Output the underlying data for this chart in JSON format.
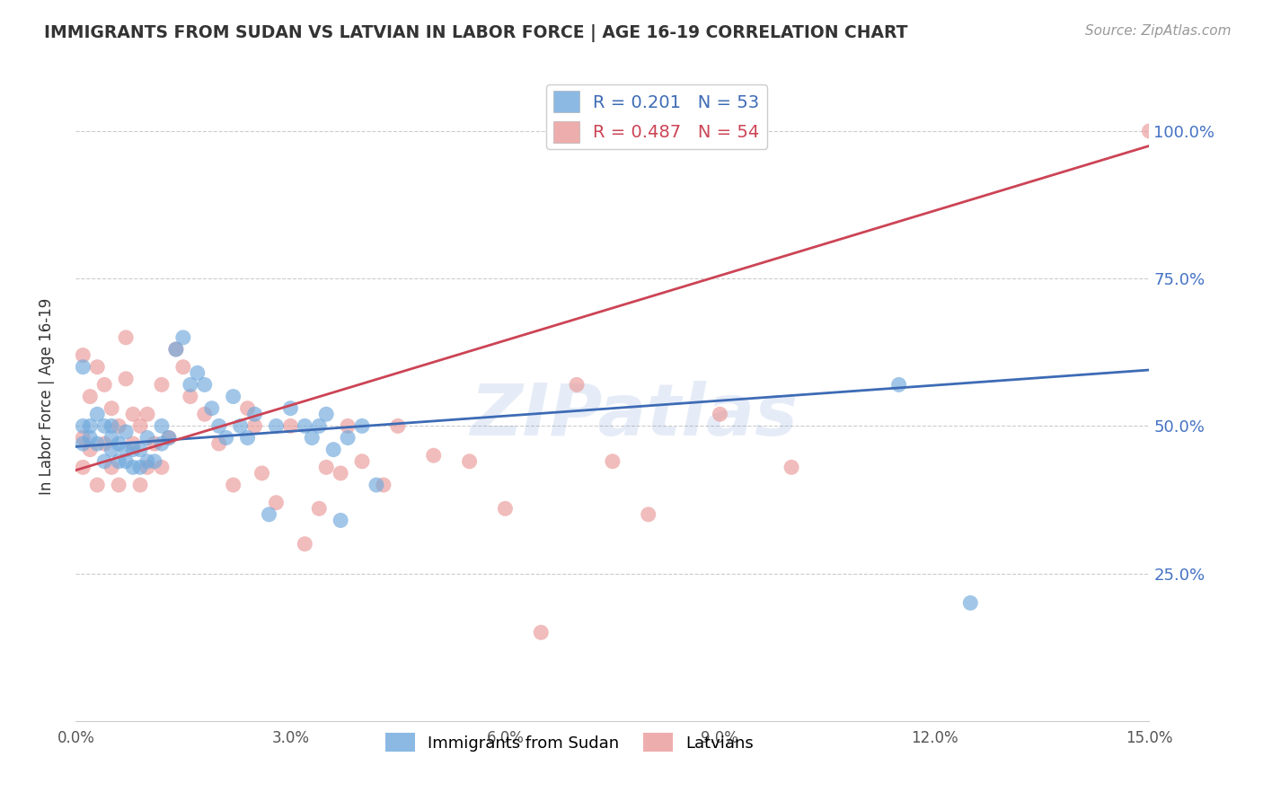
{
  "title": "IMMIGRANTS FROM SUDAN VS LATVIAN IN LABOR FORCE | AGE 16-19 CORRELATION CHART",
  "source": "Source: ZipAtlas.com",
  "ylabel": "In Labor Force | Age 16-19",
  "watermark": "ZIPatlas",
  "xmin": 0.0,
  "xmax": 0.15,
  "ymin": 0.0,
  "ymax": 1.1,
  "yticks": [
    0.25,
    0.5,
    0.75,
    1.0
  ],
  "ytick_labels": [
    "25.0%",
    "50.0%",
    "75.0%",
    "100.0%"
  ],
  "xticks": [
    0.0,
    0.03,
    0.06,
    0.09,
    0.12,
    0.15
  ],
  "xtick_labels": [
    "0.0%",
    "3.0%",
    "6.0%",
    "9.0%",
    "12.0%",
    "15.0%"
  ],
  "blue_r": 0.201,
  "blue_n": 53,
  "pink_r": 0.487,
  "pink_n": 54,
  "blue_color": "#6fa8dc",
  "pink_color": "#ea9999",
  "blue_line_color": "#3d6bb5",
  "pink_line_color": "#cc4455",
  "legend_label_blue": "Immigrants from Sudan",
  "legend_label_pink": "Latvians",
  "blue_line_y0": 0.465,
  "blue_line_y1": 0.595,
  "pink_line_y0": 0.425,
  "pink_line_y1": 0.975,
  "blue_scatter_x": [
    0.001,
    0.001,
    0.001,
    0.002,
    0.002,
    0.003,
    0.003,
    0.004,
    0.004,
    0.005,
    0.005,
    0.005,
    0.006,
    0.006,
    0.007,
    0.007,
    0.007,
    0.008,
    0.008,
    0.009,
    0.009,
    0.01,
    0.01,
    0.011,
    0.012,
    0.012,
    0.013,
    0.014,
    0.015,
    0.016,
    0.017,
    0.018,
    0.019,
    0.02,
    0.021,
    0.022,
    0.023,
    0.024,
    0.025,
    0.027,
    0.028,
    0.03,
    0.032,
    0.033,
    0.034,
    0.035,
    0.036,
    0.037,
    0.038,
    0.04,
    0.042,
    0.115,
    0.125
  ],
  "blue_scatter_y": [
    0.47,
    0.5,
    0.6,
    0.48,
    0.5,
    0.47,
    0.52,
    0.44,
    0.5,
    0.46,
    0.48,
    0.5,
    0.44,
    0.47,
    0.44,
    0.46,
    0.49,
    0.43,
    0.46,
    0.43,
    0.46,
    0.44,
    0.48,
    0.44,
    0.47,
    0.5,
    0.48,
    0.63,
    0.65,
    0.57,
    0.59,
    0.57,
    0.53,
    0.5,
    0.48,
    0.55,
    0.5,
    0.48,
    0.52,
    0.35,
    0.5,
    0.53,
    0.5,
    0.48,
    0.5,
    0.52,
    0.46,
    0.34,
    0.48,
    0.5,
    0.4,
    0.57,
    0.2
  ],
  "pink_scatter_x": [
    0.001,
    0.001,
    0.001,
    0.002,
    0.002,
    0.003,
    0.003,
    0.004,
    0.004,
    0.005,
    0.005,
    0.006,
    0.006,
    0.007,
    0.007,
    0.008,
    0.008,
    0.009,
    0.009,
    0.01,
    0.01,
    0.011,
    0.012,
    0.012,
    0.013,
    0.014,
    0.015,
    0.016,
    0.018,
    0.02,
    0.022,
    0.024,
    0.025,
    0.026,
    0.028,
    0.03,
    0.032,
    0.034,
    0.035,
    0.037,
    0.038,
    0.04,
    0.043,
    0.045,
    0.05,
    0.055,
    0.06,
    0.065,
    0.07,
    0.075,
    0.08,
    0.09,
    0.1,
    0.15
  ],
  "pink_scatter_y": [
    0.43,
    0.48,
    0.62,
    0.46,
    0.55,
    0.4,
    0.6,
    0.47,
    0.57,
    0.43,
    0.53,
    0.4,
    0.5,
    0.58,
    0.65,
    0.47,
    0.52,
    0.4,
    0.5,
    0.43,
    0.52,
    0.47,
    0.43,
    0.57,
    0.48,
    0.63,
    0.6,
    0.55,
    0.52,
    0.47,
    0.4,
    0.53,
    0.5,
    0.42,
    0.37,
    0.5,
    0.3,
    0.36,
    0.43,
    0.42,
    0.5,
    0.44,
    0.4,
    0.5,
    0.45,
    0.44,
    0.36,
    0.15,
    0.57,
    0.44,
    0.35,
    0.52,
    0.43,
    1.0
  ]
}
